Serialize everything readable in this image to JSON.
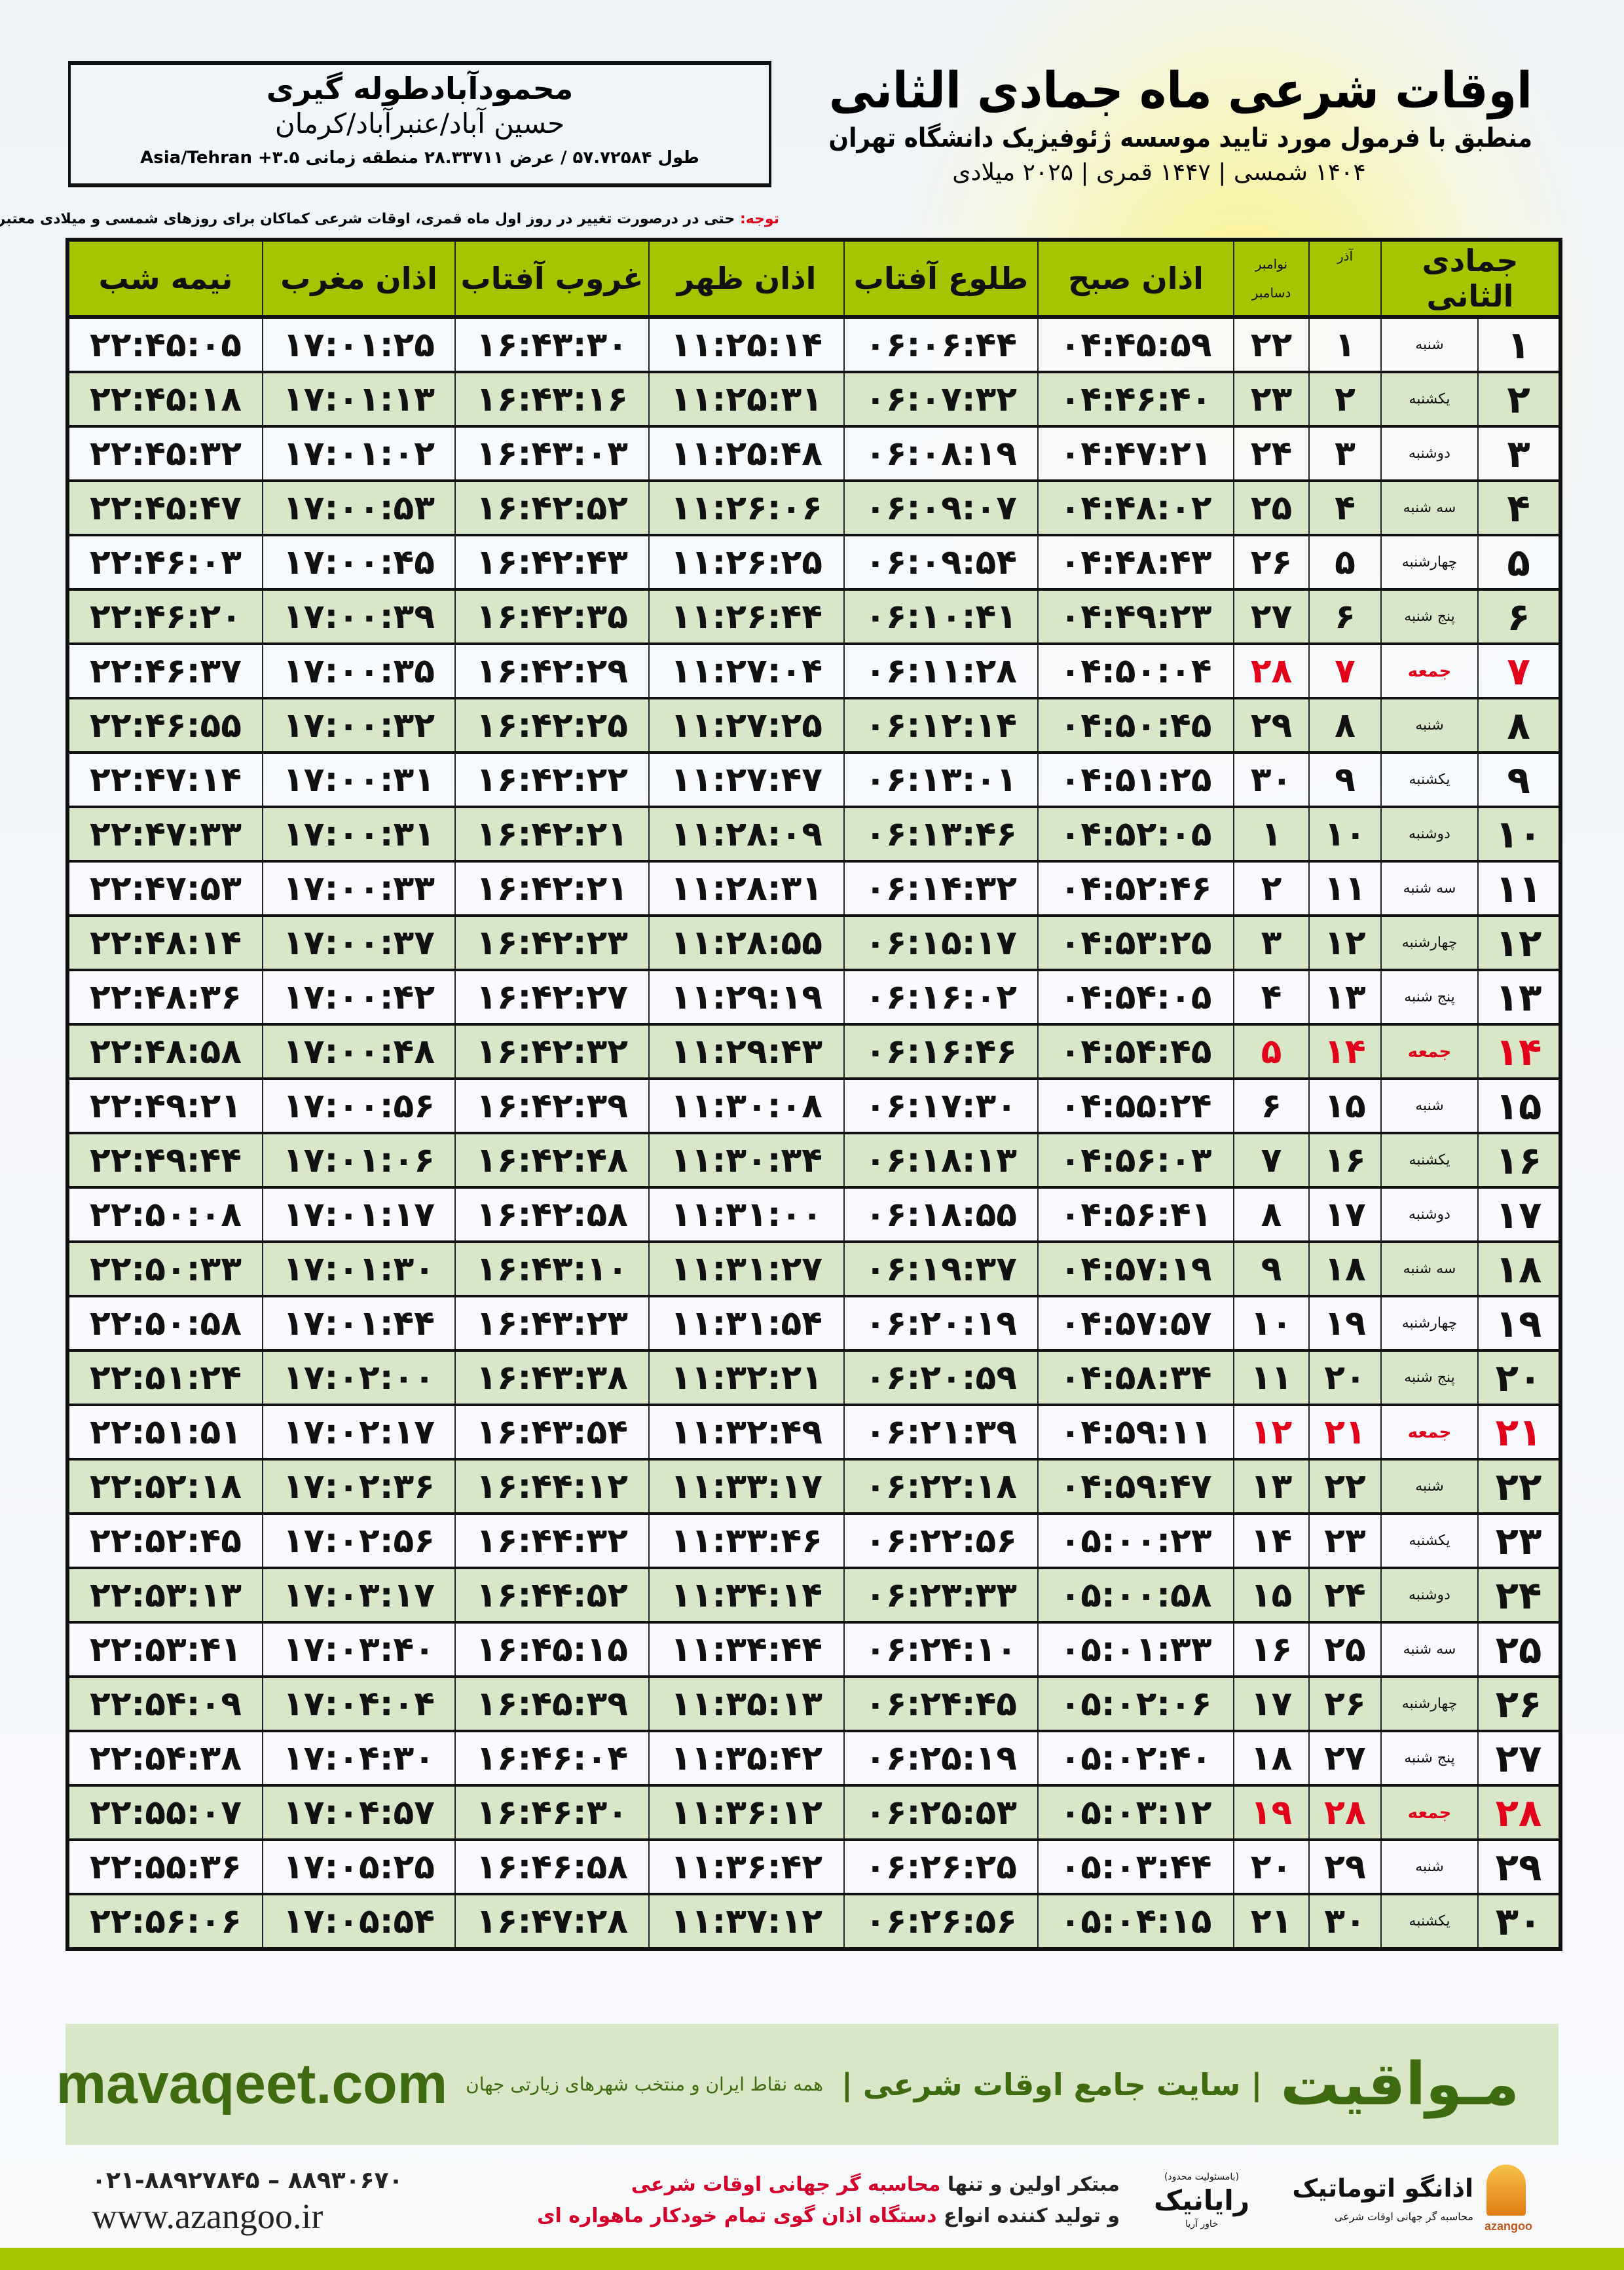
{
  "location": {
    "city": "محمودآبادطوله گیری",
    "region": "حسین آباد/عنبرآباد/کرمان",
    "coords": "طول ۵۷.۷۲۵۸۴ / عرض ۲۸.۳۳۷۱۱ منطقه زمانی ۳.۵+ Asia/Tehran"
  },
  "header": {
    "title": "اوقات شرعی ماه جمادی الثانی",
    "subtitle": "منطبق با فرمول مورد تایید موسسه ژئوفیزیک دانشگاه تهران",
    "years": "۱۴۰۴ شمسی | ۱۴۴۷ قمری | ۲۰۲۵ میلادی"
  },
  "note": {
    "label": "توجه:",
    "text": " حتی در درصورت تغییر در روز اول ماه قمری، اوقات شرعی کماکان برای روزهای شمسی و میلادی معتبر است."
  },
  "colors": {
    "header_green": "#a6c400",
    "row_green": "#d8e7c8",
    "friday_red": "#e3001b",
    "brand_green": "#3e6b0f"
  },
  "table": {
    "columns": {
      "day": "جمادی الثانی",
      "azar": "آذر",
      "nov": "نوامبر",
      "dec": "دسامبر",
      "sobh": "اذان صبح",
      "tolu": "طلوع آفتاب",
      "zohr": "اذان ظهر",
      "ghorub": "غروب آفتاب",
      "maghreb": "اذان مغرب",
      "nime": "نیمه شب"
    },
    "friday_rows": [
      7,
      14,
      21,
      28
    ],
    "rows": [
      [
        "۱",
        "شنبه",
        "۱",
        "۲۲",
        "۰۴:۴۵:۵۹",
        "۰۶:۰۶:۴۴",
        "۱۱:۲۵:۱۴",
        "۱۶:۴۳:۳۰",
        "۱۷:۰۱:۲۵",
        "۲۲:۴۵:۰۵"
      ],
      [
        "۲",
        "یکشنبه",
        "۲",
        "۲۳",
        "۰۴:۴۶:۴۰",
        "۰۶:۰۷:۳۲",
        "۱۱:۲۵:۳۱",
        "۱۶:۴۳:۱۶",
        "۱۷:۰۱:۱۳",
        "۲۲:۴۵:۱۸"
      ],
      [
        "۳",
        "دوشنبه",
        "۳",
        "۲۴",
        "۰۴:۴۷:۲۱",
        "۰۶:۰۸:۱۹",
        "۱۱:۲۵:۴۸",
        "۱۶:۴۳:۰۳",
        "۱۷:۰۱:۰۲",
        "۲۲:۴۵:۳۲"
      ],
      [
        "۴",
        "سه شنبه",
        "۴",
        "۲۵",
        "۰۴:۴۸:۰۲",
        "۰۶:۰۹:۰۷",
        "۱۱:۲۶:۰۶",
        "۱۶:۴۲:۵۲",
        "۱۷:۰۰:۵۳",
        "۲۲:۴۵:۴۷"
      ],
      [
        "۵",
        "چهارشنبه",
        "۵",
        "۲۶",
        "۰۴:۴۸:۴۳",
        "۰۶:۰۹:۵۴",
        "۱۱:۲۶:۲۵",
        "۱۶:۴۲:۴۳",
        "۱۷:۰۰:۴۵",
        "۲۲:۴۶:۰۳"
      ],
      [
        "۶",
        "پنج شنبه",
        "۶",
        "۲۷",
        "۰۴:۴۹:۲۳",
        "۰۶:۱۰:۴۱",
        "۱۱:۲۶:۴۴",
        "۱۶:۴۲:۳۵",
        "۱۷:۰۰:۳۹",
        "۲۲:۴۶:۲۰"
      ],
      [
        "۷",
        "جمعه",
        "۷",
        "۲۸",
        "۰۴:۵۰:۰۴",
        "۰۶:۱۱:۲۸",
        "۱۱:۲۷:۰۴",
        "۱۶:۴۲:۲۹",
        "۱۷:۰۰:۳۵",
        "۲۲:۴۶:۳۷"
      ],
      [
        "۸",
        "شنبه",
        "۸",
        "۲۹",
        "۰۴:۵۰:۴۵",
        "۰۶:۱۲:۱۴",
        "۱۱:۲۷:۲۵",
        "۱۶:۴۲:۲۵",
        "۱۷:۰۰:۳۲",
        "۲۲:۴۶:۵۵"
      ],
      [
        "۹",
        "یکشنبه",
        "۹",
        "۳۰",
        "۰۴:۵۱:۲۵",
        "۰۶:۱۳:۰۱",
        "۱۱:۲۷:۴۷",
        "۱۶:۴۲:۲۲",
        "۱۷:۰۰:۳۱",
        "۲۲:۴۷:۱۴"
      ],
      [
        "۱۰",
        "دوشنبه",
        "۱۰",
        "۱",
        "۰۴:۵۲:۰۵",
        "۰۶:۱۳:۴۶",
        "۱۱:۲۸:۰۹",
        "۱۶:۴۲:۲۱",
        "۱۷:۰۰:۳۱",
        "۲۲:۴۷:۳۳"
      ],
      [
        "۱۱",
        "سه شنبه",
        "۱۱",
        "۲",
        "۰۴:۵۲:۴۶",
        "۰۶:۱۴:۳۲",
        "۱۱:۲۸:۳۱",
        "۱۶:۴۲:۲۱",
        "۱۷:۰۰:۳۳",
        "۲۲:۴۷:۵۳"
      ],
      [
        "۱۲",
        "چهارشنبه",
        "۱۲",
        "۳",
        "۰۴:۵۳:۲۵",
        "۰۶:۱۵:۱۷",
        "۱۱:۲۸:۵۵",
        "۱۶:۴۲:۲۳",
        "۱۷:۰۰:۳۷",
        "۲۲:۴۸:۱۴"
      ],
      [
        "۱۳",
        "پنج شنبه",
        "۱۳",
        "۴",
        "۰۴:۵۴:۰۵",
        "۰۶:۱۶:۰۲",
        "۱۱:۲۹:۱۹",
        "۱۶:۴۲:۲۷",
        "۱۷:۰۰:۴۲",
        "۲۲:۴۸:۳۶"
      ],
      [
        "۱۴",
        "جمعه",
        "۱۴",
        "۵",
        "۰۴:۵۴:۴۵",
        "۰۶:۱۶:۴۶",
        "۱۱:۲۹:۴۳",
        "۱۶:۴۲:۳۲",
        "۱۷:۰۰:۴۸",
        "۲۲:۴۸:۵۸"
      ],
      [
        "۱۵",
        "شنبه",
        "۱۵",
        "۶",
        "۰۴:۵۵:۲۴",
        "۰۶:۱۷:۳۰",
        "۱۱:۳۰:۰۸",
        "۱۶:۴۲:۳۹",
        "۱۷:۰۰:۵۶",
        "۲۲:۴۹:۲۱"
      ],
      [
        "۱۶",
        "یکشنبه",
        "۱۶",
        "۷",
        "۰۴:۵۶:۰۳",
        "۰۶:۱۸:۱۳",
        "۱۱:۳۰:۳۴",
        "۱۶:۴۲:۴۸",
        "۱۷:۰۱:۰۶",
        "۲۲:۴۹:۴۴"
      ],
      [
        "۱۷",
        "دوشنبه",
        "۱۷",
        "۸",
        "۰۴:۵۶:۴۱",
        "۰۶:۱۸:۵۵",
        "۱۱:۳۱:۰۰",
        "۱۶:۴۲:۵۸",
        "۱۷:۰۱:۱۷",
        "۲۲:۵۰:۰۸"
      ],
      [
        "۱۸",
        "سه شنبه",
        "۱۸",
        "۹",
        "۰۴:۵۷:۱۹",
        "۰۶:۱۹:۳۷",
        "۱۱:۳۱:۲۷",
        "۱۶:۴۳:۱۰",
        "۱۷:۰۱:۳۰",
        "۲۲:۵۰:۳۳"
      ],
      [
        "۱۹",
        "چهارشنبه",
        "۱۹",
        "۱۰",
        "۰۴:۵۷:۵۷",
        "۰۶:۲۰:۱۹",
        "۱۱:۳۱:۵۴",
        "۱۶:۴۳:۲۳",
        "۱۷:۰۱:۴۴",
        "۲۲:۵۰:۵۸"
      ],
      [
        "۲۰",
        "پنج شنبه",
        "۲۰",
        "۱۱",
        "۰۴:۵۸:۳۴",
        "۰۶:۲۰:۵۹",
        "۱۱:۳۲:۲۱",
        "۱۶:۴۳:۳۸",
        "۱۷:۰۲:۰۰",
        "۲۲:۵۱:۲۴"
      ],
      [
        "۲۱",
        "جمعه",
        "۲۱",
        "۱۲",
        "۰۴:۵۹:۱۱",
        "۰۶:۲۱:۳۹",
        "۱۱:۳۲:۴۹",
        "۱۶:۴۳:۵۴",
        "۱۷:۰۲:۱۷",
        "۲۲:۵۱:۵۱"
      ],
      [
        "۲۲",
        "شنبه",
        "۲۲",
        "۱۳",
        "۰۴:۵۹:۴۷",
        "۰۶:۲۲:۱۸",
        "۱۱:۳۳:۱۷",
        "۱۶:۴۴:۱۲",
        "۱۷:۰۲:۳۶",
        "۲۲:۵۲:۱۸"
      ],
      [
        "۲۳",
        "یکشنبه",
        "۲۳",
        "۱۴",
        "۰۵:۰۰:۲۳",
        "۰۶:۲۲:۵۶",
        "۱۱:۳۳:۴۶",
        "۱۶:۴۴:۳۲",
        "۱۷:۰۲:۵۶",
        "۲۲:۵۲:۴۵"
      ],
      [
        "۲۴",
        "دوشنبه",
        "۲۴",
        "۱۵",
        "۰۵:۰۰:۵۸",
        "۰۶:۲۳:۳۳",
        "۱۱:۳۴:۱۴",
        "۱۶:۴۴:۵۲",
        "۱۷:۰۳:۱۷",
        "۲۲:۵۳:۱۳"
      ],
      [
        "۲۵",
        "سه شنبه",
        "۲۵",
        "۱۶",
        "۰۵:۰۱:۳۳",
        "۰۶:۲۴:۱۰",
        "۱۱:۳۴:۴۴",
        "۱۶:۴۵:۱۵",
        "۱۷:۰۳:۴۰",
        "۲۲:۵۳:۴۱"
      ],
      [
        "۲۶",
        "چهارشنبه",
        "۲۶",
        "۱۷",
        "۰۵:۰۲:۰۶",
        "۰۶:۲۴:۴۵",
        "۱۱:۳۵:۱۳",
        "۱۶:۴۵:۳۹",
        "۱۷:۰۴:۰۴",
        "۲۲:۵۴:۰۹"
      ],
      [
        "۲۷",
        "پنج شنبه",
        "۲۷",
        "۱۸",
        "۰۵:۰۲:۴۰",
        "۰۶:۲۵:۱۹",
        "۱۱:۳۵:۴۲",
        "۱۶:۴۶:۰۴",
        "۱۷:۰۴:۳۰",
        "۲۲:۵۴:۳۸"
      ],
      [
        "۲۸",
        "جمعه",
        "۲۸",
        "۱۹",
        "۰۵:۰۳:۱۲",
        "۰۶:۲۵:۵۳",
        "۱۱:۳۶:۱۲",
        "۱۶:۴۶:۳۰",
        "۱۷:۰۴:۵۷",
        "۲۲:۵۵:۰۷"
      ],
      [
        "۲۹",
        "شنبه",
        "۲۹",
        "۲۰",
        "۰۵:۰۳:۴۴",
        "۰۶:۲۶:۲۵",
        "۱۱:۳۶:۴۲",
        "۱۶:۴۶:۵۸",
        "۱۷:۰۵:۲۵",
        "۲۲:۵۵:۳۶"
      ],
      [
        "۳۰",
        "یکشنبه",
        "۳۰",
        "۲۱",
        "۰۵:۰۴:۱۵",
        "۰۶:۲۶:۵۶",
        "۱۱:۳۷:۱۲",
        "۱۶:۴۷:۲۸",
        "۱۷:۰۵:۵۴",
        "۲۲:۵۶:۰۶"
      ]
    ]
  },
  "banner": {
    "brand": "مـواقیت",
    "slogan": "| سایت جامع اوقات شرعی |",
    "sub": "همه نقاط ایران و منتخب شهرهای زیارتی جهان",
    "site": "mavaqeet.com"
  },
  "footer": {
    "phone": "۰۲۱-۸۸۹۲۷۸۴۵ – ۸۸۹۳۰۶۷۰",
    "website": "www.azangoo.ir",
    "promo_line1_a": "مبتکر اولین و تنها ",
    "promo_line1_b": "محاسبه گر جهانی اوقات شرعی",
    "promo_line2_a": "و تولید کننده انواع ",
    "promo_line2_b": "دستگاه اذان گوی تمام خودکار ماهواره ای",
    "logo_rayanik": "رایانیک",
    "logo_rayanik_sub": "خاور آریا",
    "logo_rayanik_tag": "(بامسئولیت محدود)",
    "logo_azangoo": "اذانگو اتوماتیک",
    "logo_azangoo_sub": "محاسبه گر جهانی اوقات شرعی",
    "logo_azangoo_en": "azangoo"
  }
}
